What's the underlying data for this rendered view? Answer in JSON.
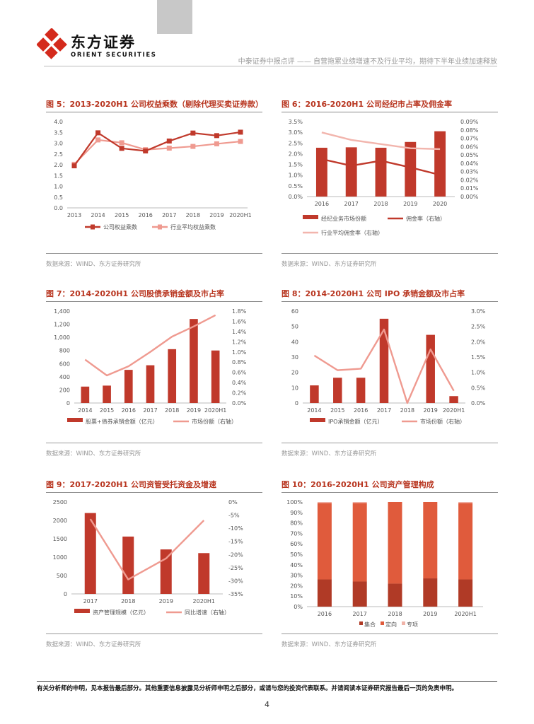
{
  "header": {
    "logo_cn": "东方证券",
    "logo_en": "ORIENT SECURITIES",
    "doc_title": "中泰证券中报点评 —— 自营拖累业绩增速不及行业平均，期待下半年业绩加速释放"
  },
  "figures": [
    {
      "title": "图 5：2013-2020H1 公司权益乘数（剔除代理买卖证券款）",
      "source": "数据来源：WIND、东方证券研究所"
    },
    {
      "title": "图 6：2016-2020H1 公司经纪市占率及佣金率",
      "source": "数据来源：WIND、东方证券研究所"
    },
    {
      "title": "图 7：2014-2020H1 公司股债承销金额及市占率",
      "source": "数据来源：WIND、东方证券研究所"
    },
    {
      "title": "图 8：2014-2020H1 公司 IPO 承销金额及市占率",
      "source": "数据来源：WIND、东方证券研究所"
    },
    {
      "title": "图 9：2017-2020H1 公司资管受托资金及增速",
      "source": "数据来源：WIND、东方证券研究所"
    },
    {
      "title": "图 10：2016-2020H1 公司资产管理构成",
      "source": "数据来源：WIND、东方证券研究所"
    }
  ],
  "chart_data": [
    {
      "type": "line",
      "categories": [
        "2013",
        "2014",
        "2015",
        "2016",
        "2017",
        "2018",
        "2019",
        "2020H1"
      ],
      "ylim": [
        0,
        4.0
      ],
      "yticks": [
        "0.0",
        "0.5",
        "1.0",
        "1.5",
        "2.0",
        "2.5",
        "3.0",
        "3.5",
        "4.0"
      ],
      "series": [
        {
          "name": "公司权益乘数",
          "values": [
            1.95,
            3.48,
            2.76,
            2.64,
            3.1,
            3.47,
            3.35,
            3.51
          ],
          "color": "#c0392b"
        },
        {
          "name": "行业平均权益乘数",
          "values": [
            2.02,
            3.15,
            3.02,
            2.7,
            2.77,
            2.85,
            2.97,
            3.08
          ],
          "color": "#ef9a90"
        }
      ]
    },
    {
      "type": "bar+line",
      "categories": [
        "2016",
        "2017",
        "2018",
        "2019",
        "2020"
      ],
      "ylim": [
        0,
        3.5
      ],
      "yticks": [
        "0.0%",
        "0.5%",
        "1.0%",
        "1.5%",
        "2.0%",
        "2.5%",
        "3.0%",
        "3.5%"
      ],
      "y2lim": [
        0,
        0.09
      ],
      "y2ticks": [
        "0.00%",
        "0.01%",
        "0.02%",
        "0.03%",
        "0.04%",
        "0.05%",
        "0.06%",
        "0.07%",
        "0.08%",
        "0.09%"
      ],
      "bars": {
        "name": "经纪业务市场份额",
        "values": [
          2.28,
          2.3,
          2.28,
          2.55,
          3.05
        ],
        "color": "#c0392b"
      },
      "lines": [
        {
          "name": "佣金率（右轴）",
          "values": [
            0.045,
            0.037,
            0.043,
            0.035,
            0.026
          ],
          "color": "#c0392b"
        },
        {
          "name": "行业平均佣金率（右轴）",
          "values": [
            0.077,
            0.068,
            0.063,
            0.058,
            0.057
          ],
          "color": "#f2b5ad"
        }
      ]
    },
    {
      "type": "bar+line",
      "categories": [
        "2014",
        "2015",
        "2016",
        "2017",
        "2018",
        "2019",
        "2020H1"
      ],
      "ylim": [
        0,
        1400
      ],
      "yticks": [
        "0",
        "200",
        "400",
        "600",
        "800",
        "1,000",
        "1,200",
        "1,400"
      ],
      "y2lim": [
        0,
        1.8
      ],
      "y2ticks": [
        "0.0%",
        "0.2%",
        "0.4%",
        "0.6%",
        "0.8%",
        "1.0%",
        "1.2%",
        "1.4%",
        "1.6%",
        "1.8%"
      ],
      "bars": {
        "name": "股票+债券承销金额（亿元）",
        "values": [
          250,
          265,
          505,
          575,
          820,
          1280,
          800
        ],
        "color": "#c0392b"
      },
      "lines": [
        {
          "name": "市场份额（右轴）",
          "values": [
            0.85,
            0.54,
            0.72,
            1.0,
            1.3,
            1.5,
            1.72
          ],
          "color": "#ef9a90"
        }
      ]
    },
    {
      "type": "bar+line",
      "categories": [
        "2014",
        "2015",
        "2016",
        "2017",
        "2018",
        "2019",
        "2020H1"
      ],
      "ylim": [
        0,
        60
      ],
      "yticks": [
        "0",
        "10",
        "20",
        "30",
        "40",
        "50",
        "60"
      ],
      "y2lim": [
        0,
        3.0
      ],
      "y2ticks": [
        "0.0%",
        "0.5%",
        "1.0%",
        "1.5%",
        "2.0%",
        "2.5%",
        "3.0%"
      ],
      "bars": {
        "name": "IPO承销金额（亿元）",
        "values": [
          11.5,
          16.5,
          16.5,
          55,
          0,
          44.5,
          4.5
        ],
        "color": "#c0392b"
      },
      "lines": [
        {
          "name": "市场份额（右轴）",
          "values": [
            1.55,
            1.07,
            1.12,
            2.4,
            0.0,
            1.75,
            0.4
          ],
          "color": "#ef9a90"
        }
      ]
    },
    {
      "type": "bar+line",
      "categories": [
        "2017",
        "2018",
        "2019",
        "2020H1"
      ],
      "ylim": [
        0,
        2500
      ],
      "yticks": [
        "0",
        "500",
        "1000",
        "1500",
        "2000",
        "2500"
      ],
      "y2lim": [
        -35,
        0
      ],
      "y2ticks": [
        "-35%",
        "-30%",
        "-25%",
        "-20%",
        "-15%",
        "-10%",
        "-5%",
        "0%"
      ],
      "bars": {
        "name": "资产管理规模（亿元）",
        "values": [
          2200,
          1560,
          1210,
          1110
        ],
        "color": "#c0392b"
      },
      "lines": [
        {
          "name": "同比增速（右轴）",
          "values": [
            -6.5,
            -29.5,
            -21.5,
            -7.0
          ],
          "color": "#ef9a90"
        }
      ]
    },
    {
      "type": "stacked-bar",
      "categories": [
        "2016",
        "2017",
        "2018",
        "2019",
        "2020H1"
      ],
      "ylim": [
        0,
        100
      ],
      "yticks": [
        "0%",
        "10%",
        "20%",
        "30%",
        "40%",
        "50%",
        "60%",
        "70%",
        "80%",
        "90%",
        "100%"
      ],
      "series": [
        {
          "name": "集合",
          "values": [
            26,
            24,
            22,
            27,
            26
          ],
          "color": "#b03a26"
        },
        {
          "name": "定向",
          "values": [
            73,
            75,
            78,
            73,
            73
          ],
          "color": "#e05b3c"
        },
        {
          "name": "专项",
          "values": [
            1,
            1,
            0,
            0,
            1
          ],
          "color": "#f0b3a8"
        }
      ]
    }
  ],
  "footer": {
    "disclaimer": "有关分析师的申明，见本报告最后部分。其他重要信息披露见分析师申明之后部分，或请与您的投资代表联系。并请阅读本证券研究报告最后一页的免责申明。",
    "page_number": "4"
  }
}
